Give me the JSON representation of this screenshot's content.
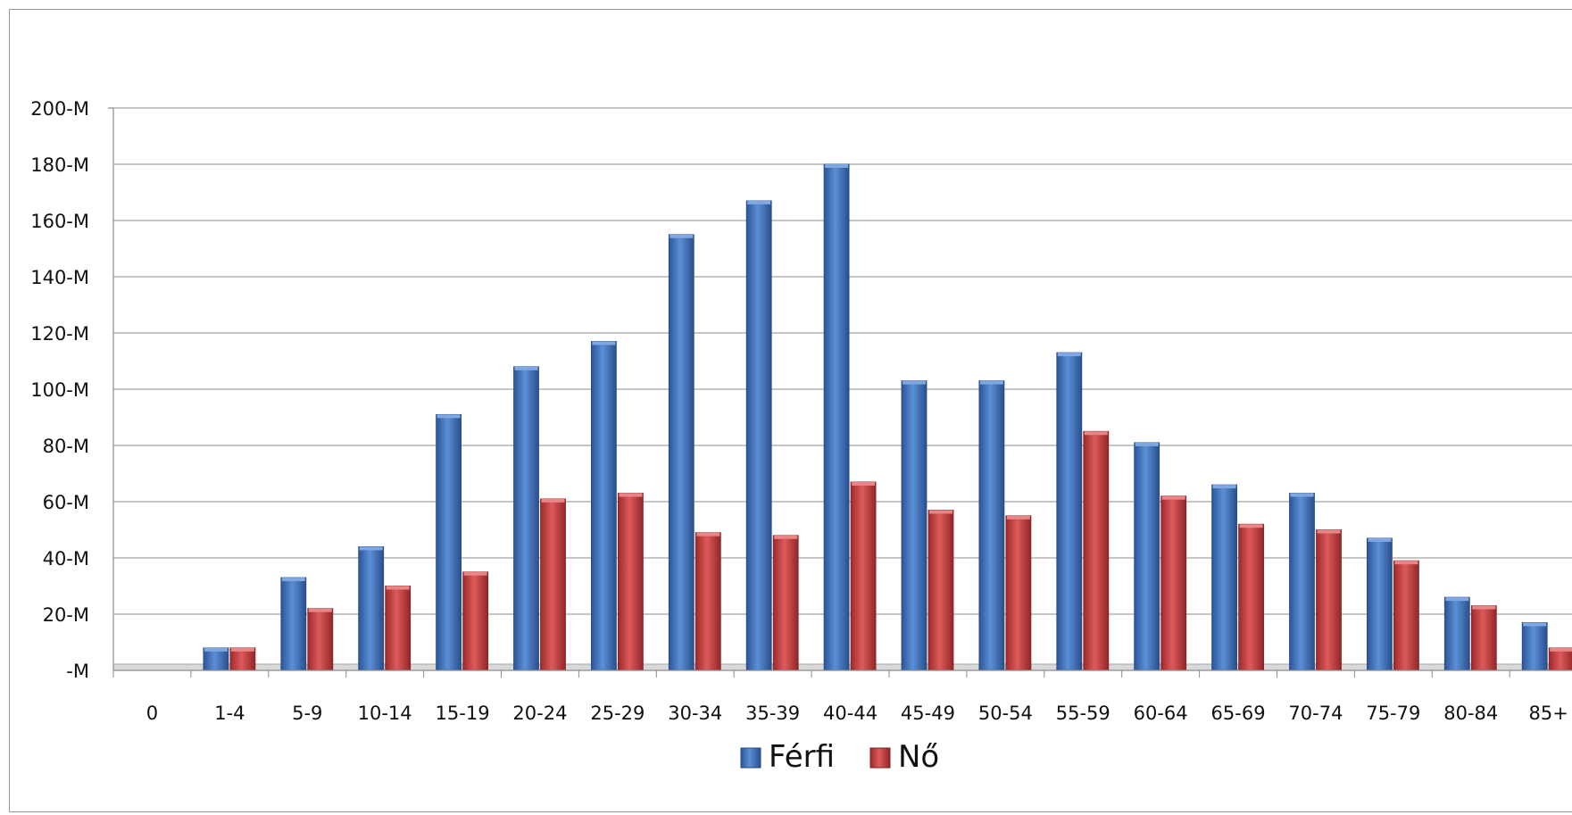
{
  "chart_data": {
    "type": "bar",
    "categories": [
      "0",
      "1-4",
      "5-9",
      "10-14",
      "15-19",
      "20-24",
      "25-29",
      "30-34",
      "35-39",
      "40-44",
      "45-49",
      "50-54",
      "55-59",
      "60-64",
      "65-69",
      "70-74",
      "75-79",
      "80-84",
      "85+"
    ],
    "series": [
      {
        "name": "Férfi",
        "color": "#3e6fb4",
        "values": [
          0,
          8,
          33,
          44,
          91,
          108,
          117,
          155,
          167,
          180,
          103,
          103,
          113,
          81,
          66,
          63,
          47,
          26,
          17
        ]
      },
      {
        "name": "Nő",
        "color": "#c0393b",
        "values": [
          0,
          8,
          22,
          30,
          35,
          61,
          63,
          49,
          48,
          67,
          57,
          55,
          85,
          62,
          52,
          50,
          39,
          23,
          8
        ]
      }
    ],
    "ylim": [
      0,
      200
    ],
    "ytick_values": [
      0,
      20,
      40,
      60,
      80,
      100,
      120,
      140,
      160,
      180,
      200
    ],
    "ytick_labels": [
      "-M",
      "20-M",
      "40-M",
      "60-M",
      "80-M",
      "100-M",
      "120-M",
      "140-M",
      "160-M",
      "180-M",
      "200-M"
    ],
    "grid": true,
    "legend_position": "bottom"
  }
}
